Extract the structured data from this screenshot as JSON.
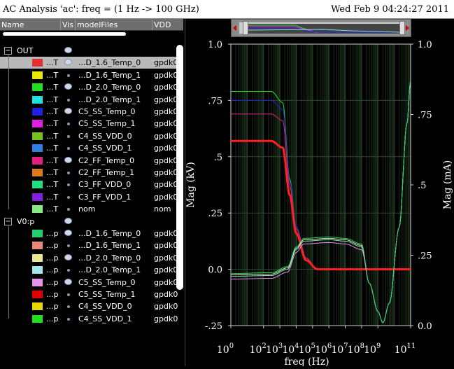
{
  "window": {
    "title": "AC Analysis 'ac': freq = (1 Hz -> 100 GHz)",
    "datetime": "Wed Feb 9 04:24:27 2011"
  },
  "columns": [
    "Name",
    "Vis",
    "modelFiles",
    "VDD"
  ],
  "groups": [
    {
      "name": "OUT",
      "rows": [
        {
          "name": "...T",
          "model": "...D_1.6_Temp_0",
          "vdd": "gpdk0",
          "color": "#e03030",
          "vis": "eye",
          "selected": true
        },
        {
          "name": "...T",
          "model": "...D_1.6_Temp_1",
          "vdd": "gpdk0",
          "color": "#e8e800",
          "vis": "dot"
        },
        {
          "name": "...T",
          "model": "...D_2.0_Temp_0",
          "vdd": "gpdk0",
          "color": "#20e020",
          "vis": "eye"
        },
        {
          "name": "...T",
          "model": "...D_2.0_Temp_1",
          "vdd": "gpdk0",
          "color": "#20e0e0",
          "vis": "dot"
        },
        {
          "name": "...T",
          "model": "C5_SS_Temp_0",
          "vdd": "gpdk0",
          "color": "#2020e0",
          "vis": "eye"
        },
        {
          "name": "...T",
          "model": "C5_SS_Temp_1",
          "vdd": "gpdk0",
          "color": "#e020e0",
          "vis": "dot"
        },
        {
          "name": "...T",
          "model": "C4_SS_VDD_0",
          "vdd": "gpdk0",
          "color": "#78c020",
          "vis": "dot"
        },
        {
          "name": "...T",
          "model": "C4_SS_VDD_1",
          "vdd": "gpdk0",
          "color": "#3080e0",
          "vis": "dot"
        },
        {
          "name": "...T",
          "model": "C2_FF_Temp_0",
          "vdd": "gpdk0",
          "color": "#e02080",
          "vis": "eye"
        },
        {
          "name": "...T",
          "model": "C2_FF_Temp_1",
          "vdd": "gpdk0",
          "color": "#e07820",
          "vis": "dot"
        },
        {
          "name": "...T",
          "model": "C3_FF_VDD_0",
          "vdd": "gpdk0",
          "color": "#20e080",
          "vis": "dot"
        },
        {
          "name": "...T",
          "model": "C3_FF_VDD_1",
          "vdd": "gpdk0",
          "color": "#8020e0",
          "vis": "dot"
        },
        {
          "name": "...T",
          "model": "nom",
          "vdd": "nom",
          "color": "#88e888",
          "vis": "dot"
        }
      ]
    },
    {
      "name": "V0:p",
      "rows": [
        {
          "name": "...p",
          "model": "...D_1.6_Temp_0",
          "vdd": "gpdk0",
          "color": "#20d070",
          "vis": "eye"
        },
        {
          "name": "...p",
          "model": "...D_1.6_Temp_1",
          "vdd": "gpdk0",
          "color": "#e88878",
          "vis": "dot"
        },
        {
          "name": "...p",
          "model": "...D_2.0_Temp_0",
          "vdd": "gpdk0",
          "color": "#e8e890",
          "vis": "eye"
        },
        {
          "name": "...p",
          "model": "...D_2.0_Temp_1",
          "vdd": "gpdk0",
          "color": "#a0e8e8",
          "vis": "dot"
        },
        {
          "name": "...p",
          "model": "C5_SS_Temp_0",
          "vdd": "gpdk0",
          "color": "#e890e8",
          "vis": "eye"
        },
        {
          "name": "...p",
          "model": "C5_SS_Temp_1",
          "vdd": "gpdk0",
          "color": "#e00000",
          "vis": "dot"
        },
        {
          "name": "...p",
          "model": "C4_SS_VDD_0",
          "vdd": "gpdk0",
          "color": "#e8d800",
          "vis": "dot"
        },
        {
          "name": "...p",
          "model": "C4_SS_VDD_1",
          "vdd": "gpdk0",
          "color": "#20e020",
          "vis": "dot"
        }
      ]
    }
  ],
  "chart_data": {
    "type": "line",
    "title": "",
    "xlabel": "freq (Hz)",
    "ylabel_left": "Mag (kV)",
    "ylabel_right": "Mag (mA)",
    "x_scale": "log",
    "xlim": [
      1,
      100000000000
    ],
    "ylim_left": [
      -0.25,
      1.0
    ],
    "ylim_right": [
      0.0,
      1.0
    ],
    "x_ticks": [
      {
        "value": 1,
        "label": "10^0"
      },
      {
        "value": 100,
        "label": "10^2"
      },
      {
        "value": 1000,
        "label": "10^3"
      },
      {
        "value": 10000,
        "label": "10^4"
      },
      {
        "value": 100000,
        "label": "10^5"
      },
      {
        "value": 1000000,
        "label": "10^6"
      },
      {
        "value": 10000000,
        "label": "10^7"
      },
      {
        "value": 100000000,
        "label": "10^8"
      },
      {
        "value": 1000000000,
        "label": "10^9"
      },
      {
        "value": 100000000000,
        "label": "10^11"
      }
    ],
    "y_ticks_left": [
      "1.0",
      ".75",
      ".5",
      ".25",
      "0.0",
      "-.25"
    ],
    "y_ticks_right": [
      "1.0",
      ".75",
      ".5",
      ".25",
      "0.0"
    ],
    "grid": true,
    "series_voltage": [
      {
        "color": "#20e020",
        "values": [
          [
            1,
            0.79
          ],
          [
            300,
            0.79
          ],
          [
            1500,
            0.74
          ],
          [
            4000,
            0.4
          ],
          [
            10000,
            0.19
          ],
          [
            40000,
            0.05
          ],
          [
            200000,
            0.0
          ],
          [
            100000000000,
            0.0
          ]
        ]
      },
      {
        "color": "#2020e0",
        "values": [
          [
            1,
            0.75
          ],
          [
            300,
            0.75
          ],
          [
            1500,
            0.71
          ],
          [
            4000,
            0.39
          ],
          [
            10000,
            0.19
          ],
          [
            40000,
            0.05
          ],
          [
            200000,
            0.0
          ],
          [
            100000000000,
            0.0
          ]
        ]
      },
      {
        "color": "#e02080",
        "values": [
          [
            1,
            0.69
          ],
          [
            300,
            0.69
          ],
          [
            1500,
            0.66
          ],
          [
            4000,
            0.37
          ],
          [
            10000,
            0.18
          ],
          [
            40000,
            0.05
          ],
          [
            200000,
            0.0
          ],
          [
            100000000000,
            0.0
          ]
        ]
      },
      {
        "color": "#ff2020",
        "bold": true,
        "values": [
          [
            1,
            0.57
          ],
          [
            300,
            0.57
          ],
          [
            1500,
            0.54
          ],
          [
            4000,
            0.33
          ],
          [
            10000,
            0.16
          ],
          [
            40000,
            0.04
          ],
          [
            200000,
            0.0
          ],
          [
            100000000000,
            0.0
          ]
        ]
      }
    ],
    "series_current": [
      {
        "color": "#88e0e0",
        "values": [
          [
            1,
            0.175
          ],
          [
            300,
            0.178
          ],
          [
            3000,
            0.2
          ],
          [
            10000,
            0.27
          ],
          [
            30000,
            0.3
          ],
          [
            1000000,
            0.305
          ],
          [
            10000000,
            0.3
          ],
          [
            100000000,
            0.28
          ],
          [
            300000000,
            0.15
          ],
          [
            1000000000,
            0.05
          ],
          [
            2000000000,
            0.01
          ],
          [
            5000000000,
            0.08
          ],
          [
            20000000000,
            0.35
          ],
          [
            60000000000,
            0.72
          ],
          [
            100000000000,
            0.87
          ]
        ]
      },
      {
        "color": "#e8e890",
        "values": [
          [
            1,
            0.18
          ],
          [
            300,
            0.183
          ],
          [
            3000,
            0.205
          ],
          [
            10000,
            0.275
          ],
          [
            30000,
            0.305
          ],
          [
            1000000,
            0.31
          ],
          [
            10000000,
            0.305
          ],
          [
            100000000,
            0.285
          ],
          [
            300000000,
            0.15
          ],
          [
            1000000000,
            0.05
          ],
          [
            2000000000,
            0.01
          ],
          [
            5000000000,
            0.08
          ],
          [
            20000000000,
            0.35
          ],
          [
            60000000000,
            0.72
          ],
          [
            100000000000,
            0.87
          ]
        ]
      },
      {
        "color": "#e890e8",
        "values": [
          [
            1,
            0.165
          ],
          [
            300,
            0.168
          ],
          [
            3000,
            0.19
          ],
          [
            10000,
            0.26
          ],
          [
            30000,
            0.29
          ],
          [
            1000000,
            0.295
          ],
          [
            10000000,
            0.29
          ],
          [
            100000000,
            0.27
          ],
          [
            300000000,
            0.15
          ],
          [
            1000000000,
            0.05
          ],
          [
            2000000000,
            0.01
          ],
          [
            5000000000,
            0.08
          ],
          [
            20000000000,
            0.35
          ],
          [
            60000000000,
            0.72
          ],
          [
            100000000000,
            0.87
          ]
        ]
      },
      {
        "color": "#20d070",
        "values": [
          [
            1,
            0.185
          ],
          [
            300,
            0.188
          ],
          [
            3000,
            0.21
          ],
          [
            10000,
            0.28
          ],
          [
            30000,
            0.31
          ],
          [
            1000000,
            0.315
          ],
          [
            10000000,
            0.31
          ],
          [
            100000000,
            0.29
          ],
          [
            300000000,
            0.15
          ],
          [
            1000000000,
            0.05
          ],
          [
            2000000000,
            0.01
          ],
          [
            5000000000,
            0.08
          ],
          [
            20000000000,
            0.35
          ],
          [
            60000000000,
            0.72
          ],
          [
            100000000000,
            0.87
          ]
        ]
      }
    ]
  }
}
